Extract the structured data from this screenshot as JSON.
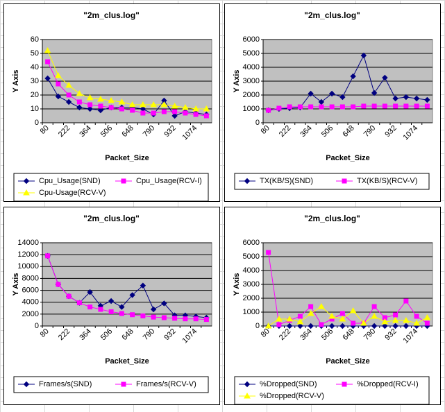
{
  "chart_data": [
    {
      "type": "line",
      "title": "\"2m_clus.log\"",
      "x_label": "Packet_Size",
      "y_label": "Y Axis",
      "categories": [
        "80",
        null,
        "222",
        null,
        "364",
        null,
        "506",
        null,
        "648",
        null,
        "790",
        null,
        "932",
        null,
        "1074",
        null
      ],
      "ylim": [
        0,
        60
      ],
      "yticks": [
        0,
        10,
        20,
        30,
        40,
        50,
        60
      ],
      "grid": true,
      "legend": "bottom",
      "series": [
        {
          "name": "Cpu_Usage(SND)",
          "color": "#000080",
          "values": [
            32,
            19,
            15,
            11,
            10,
            9,
            11,
            11,
            11,
            10,
            6,
            16,
            5,
            8,
            7,
            6
          ]
        },
        {
          "name": "Cpu_Usage(RCV-I)",
          "color": "#ff00ff",
          "values": [
            44,
            28,
            20,
            15,
            13,
            12,
            11,
            10,
            9,
            7,
            7,
            8,
            8,
            7,
            6,
            5
          ]
        },
        {
          "name": "Cpu-Usage(RCV-V)",
          "color": "#ffff00",
          "values": [
            52,
            34,
            27,
            21,
            18,
            17,
            16,
            15,
            13,
            13,
            13,
            13,
            12,
            11,
            10,
            10
          ]
        }
      ]
    },
    {
      "type": "line",
      "title": "\"2m_clus.log\"",
      "x_label": "Packet_Size",
      "y_label": "Y Axis",
      "categories": [
        "80",
        null,
        "222",
        null,
        "364",
        null,
        "506",
        null,
        "648",
        null,
        "790",
        null,
        "932",
        null,
        "1074",
        null
      ],
      "ylim": [
        0,
        6000
      ],
      "yticks": [
        0,
        1000,
        2000,
        3000,
        4000,
        5000,
        6000
      ],
      "grid": true,
      "legend": "bottom",
      "series": [
        {
          "name": "TX(KB/S)(SND)",
          "color": "#000080",
          "values": [
            900,
            1000,
            1050,
            1100,
            2100,
            1500,
            2100,
            1850,
            3350,
            4850,
            2150,
            3250,
            1750,
            1850,
            1750,
            1650
          ]
        },
        {
          "name": "TX(KB/S)(RCV-V)",
          "color": "#ff00ff",
          "values": [
            900,
            1050,
            1150,
            1150,
            1150,
            1150,
            1150,
            1150,
            1150,
            1200,
            1200,
            1200,
            1200,
            1200,
            1200,
            1200
          ]
        }
      ]
    },
    {
      "type": "line",
      "title": "\"2m_clus.log\"",
      "x_label": "Packet_Size",
      "y_label": "Y Axis",
      "categories": [
        "80",
        null,
        "222",
        null,
        "364",
        null,
        "506",
        null,
        "648",
        null,
        "790",
        null,
        "932",
        null,
        "1074",
        null
      ],
      "ylim": [
        0,
        14000
      ],
      "yticks": [
        0,
        2000,
        4000,
        6000,
        8000,
        10000,
        12000,
        14000
      ],
      "grid": true,
      "legend": "bottom",
      "series": [
        {
          "name": "Frames/s(SND)",
          "color": "#000080",
          "values": [
            11800,
            7000,
            5000,
            3900,
            5700,
            3400,
            4200,
            3200,
            5200,
            6800,
            2800,
            3800,
            1800,
            1800,
            1600,
            1400
          ]
        },
        {
          "name": "Frames/s(RCV-V)",
          "color": "#ff00ff",
          "values": [
            11800,
            7000,
            5000,
            3900,
            3200,
            2800,
            2400,
            2100,
            1900,
            1700,
            1500,
            1400,
            1300,
            1200,
            1200,
            1100
          ]
        }
      ]
    },
    {
      "type": "line",
      "title": "\"2m_clus.log\"",
      "x_label": "Packet_Size",
      "y_label": "Y Axis",
      "categories": [
        "80",
        null,
        "222",
        null,
        "364",
        null,
        "506",
        null,
        "648",
        null,
        "790",
        null,
        "932",
        null,
        "1074",
        null
      ],
      "ylim": [
        0,
        6000
      ],
      "yticks": [
        0,
        1000,
        2000,
        3000,
        4000,
        5000,
        6000
      ],
      "grid": true,
      "legend": "bottom",
      "series": [
        {
          "name": "%Dropped(SND)",
          "color": "#000080",
          "values": [
            0,
            0,
            0,
            0,
            0,
            0,
            0,
            0,
            0,
            0,
            0,
            0,
            0,
            0,
            0,
            0
          ]
        },
        {
          "name": "%Dropped(RCV-I)",
          "color": "#ff00ff",
          "values": [
            5300,
            100,
            400,
            700,
            1400,
            100,
            500,
            900,
            200,
            200,
            1400,
            600,
            800,
            1800,
            700,
            200
          ]
        },
        {
          "name": "%Dropped(RCV-V)",
          "color": "#ffff00",
          "values": [
            0,
            500,
            500,
            300,
            900,
            1400,
            700,
            500,
            1100,
            200,
            700,
            300,
            400,
            400,
            200,
            600
          ]
        }
      ]
    }
  ]
}
